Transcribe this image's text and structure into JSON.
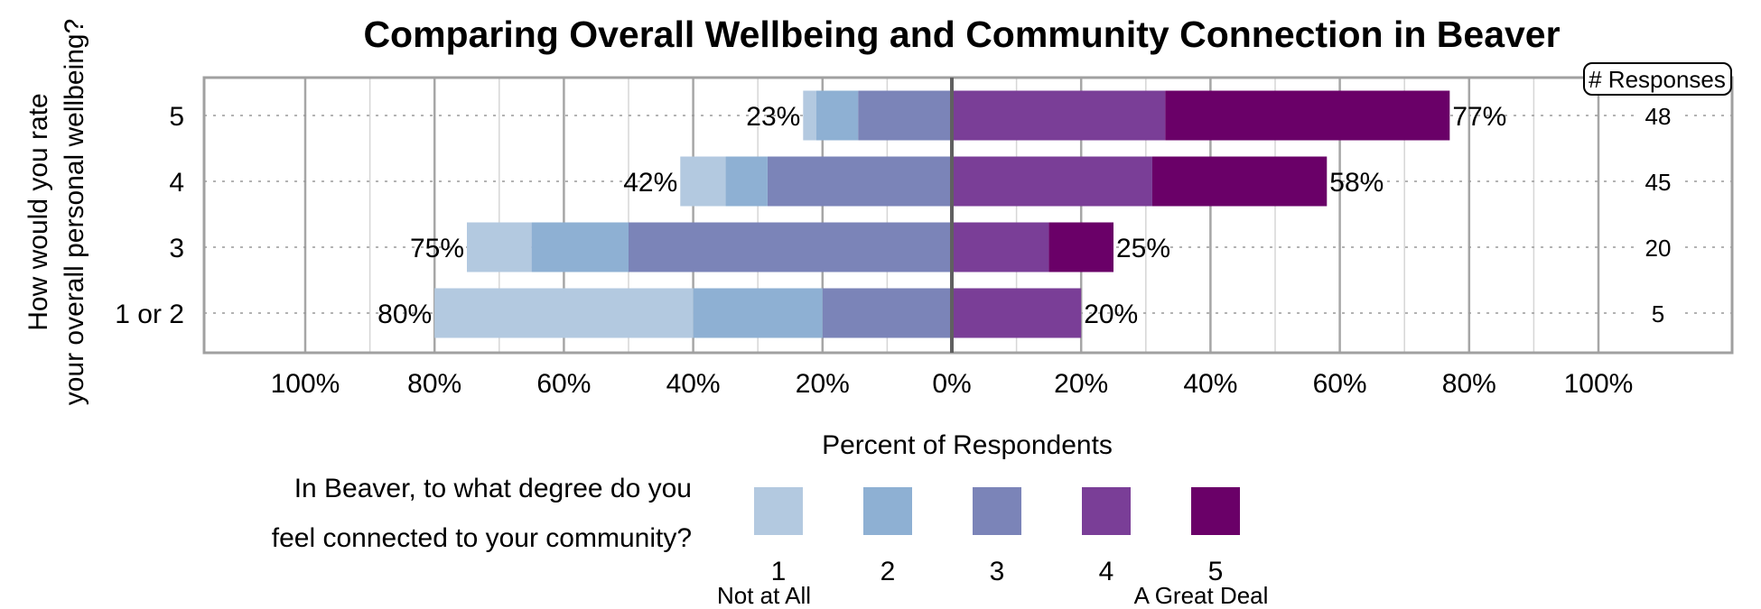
{
  "chart_data": {
    "type": "bar",
    "orientation": "horizontal",
    "stacked": "diverging",
    "title": "Comparing Overall Wellbeing and Community Connection in Beaver",
    "ylabel": "How would you rate your overall personal wellbeing?",
    "xlabel": "Percent of Respondents",
    "xlim": [
      -100,
      100
    ],
    "x_ticks": [
      "100%",
      "80%",
      "60%",
      "40%",
      "20%",
      "0%",
      "20%",
      "40%",
      "60%",
      "80%",
      "100%"
    ],
    "categories": [
      "5",
      "4",
      "3",
      "1 or 2"
    ],
    "series": [
      {
        "name": "1",
        "color": "#b3c9e0",
        "side": "negative",
        "values": [
          2,
          7,
          10,
          40
        ]
      },
      {
        "name": "2",
        "color": "#8eb0d3",
        "side": "negative",
        "values": [
          6.5,
          6.5,
          15,
          20
        ]
      },
      {
        "name": "3",
        "color": "#7b84b8",
        "side": "negative",
        "values": [
          14.5,
          28.5,
          50,
          20
        ]
      },
      {
        "name": "4",
        "color": "#7a3e97",
        "side": "positive",
        "values": [
          33,
          31,
          15,
          20
        ]
      },
      {
        "name": "5",
        "color": "#6a0068",
        "side": "positive",
        "values": [
          44,
          27,
          10,
          0
        ]
      }
    ],
    "negative_totals": [
      "23%",
      "42%",
      "75%",
      "80%"
    ],
    "positive_totals": [
      "77%",
      "58%",
      "25%",
      "20%"
    ],
    "responses_header": "# Responses",
    "responses": [
      "48",
      "45",
      "20",
      "5"
    ],
    "legend": {
      "title_line1": "In Beaver, to what degree do you",
      "title_line2": "feel connected to your community?",
      "low_label": "Not at All",
      "high_label": "A Great Deal",
      "placement": "bottom"
    },
    "grid": true
  }
}
